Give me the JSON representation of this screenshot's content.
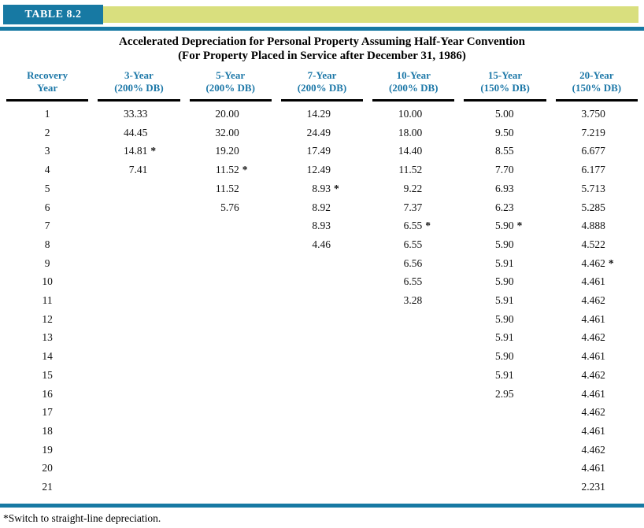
{
  "badge": "TABLE 8.2",
  "title": {
    "line1": "Accelerated Depreciation for Personal Property Assuming Half-Year Convention",
    "line2": "(For Property Placed in Service after December 31, 1986)"
  },
  "table": {
    "columns": [
      {
        "line1": "Recovery",
        "line2": "Year"
      },
      {
        "line1": "3-Year",
        "line2": "(200% DB)"
      },
      {
        "line1": "5-Year",
        "line2": "(200% DB)"
      },
      {
        "line1": "7-Year",
        "line2": "(200% DB)"
      },
      {
        "line1": "10-Year",
        "line2": "(200% DB)"
      },
      {
        "line1": "15-Year",
        "line2": "(150% DB)"
      },
      {
        "line1": "20-Year",
        "line2": "(150% DB)"
      }
    ],
    "rows": [
      {
        "year": "1",
        "values": [
          "33.33",
          "20.00",
          "14.29",
          "10.00",
          "5.00",
          "3.750"
        ]
      },
      {
        "year": "2",
        "values": [
          "44.45",
          "32.00",
          "24.49",
          "18.00",
          "9.50",
          "7.219"
        ]
      },
      {
        "year": "3",
        "values": [
          "14.81 *",
          "19.20",
          "17.49",
          "14.40",
          "8.55",
          "6.677"
        ]
      },
      {
        "year": "4",
        "values": [
          "7.41",
          "11.52 *",
          "12.49",
          "11.52",
          "7.70",
          "6.177"
        ]
      },
      {
        "year": "5",
        "values": [
          "",
          "11.52",
          "8.93 *",
          "9.22",
          "6.93",
          "5.713"
        ]
      },
      {
        "year": "6",
        "values": [
          "",
          "5.76",
          "8.92",
          "7.37",
          "6.23",
          "5.285"
        ]
      },
      {
        "year": "7",
        "values": [
          "",
          "",
          "8.93",
          "6.55 *",
          "5.90 *",
          "4.888"
        ]
      },
      {
        "year": "8",
        "values": [
          "",
          "",
          "4.46",
          "6.55",
          "5.90",
          "4.522"
        ]
      },
      {
        "year": "9",
        "values": [
          "",
          "",
          "",
          "6.56",
          "5.91",
          "4.462 *"
        ]
      },
      {
        "year": "10",
        "values": [
          "",
          "",
          "",
          "6.55",
          "5.90",
          "4.461"
        ]
      },
      {
        "year": "11",
        "values": [
          "",
          "",
          "",
          "3.28",
          "5.91",
          "4.462"
        ]
      },
      {
        "year": "12",
        "values": [
          "",
          "",
          "",
          "",
          "5.90",
          "4.461"
        ]
      },
      {
        "year": "13",
        "values": [
          "",
          "",
          "",
          "",
          "5.91",
          "4.462"
        ]
      },
      {
        "year": "14",
        "values": [
          "",
          "",
          "",
          "",
          "5.90",
          "4.461"
        ]
      },
      {
        "year": "15",
        "values": [
          "",
          "",
          "",
          "",
          "5.91",
          "4.462"
        ]
      },
      {
        "year": "16",
        "values": [
          "",
          "",
          "",
          "",
          "2.95",
          "4.461"
        ]
      },
      {
        "year": "17",
        "values": [
          "",
          "",
          "",
          "",
          "",
          "4.462"
        ]
      },
      {
        "year": "18",
        "values": [
          "",
          "",
          "",
          "",
          "",
          "4.461"
        ]
      },
      {
        "year": "19",
        "values": [
          "",
          "",
          "",
          "",
          "",
          "4.462"
        ]
      },
      {
        "year": "20",
        "values": [
          "",
          "",
          "",
          "",
          "",
          "4.461"
        ]
      },
      {
        "year": "21",
        "values": [
          "",
          "",
          "",
          "",
          "",
          "2.231"
        ]
      }
    ]
  },
  "footnote": "*Switch to straight-line depreciation.",
  "colors": {
    "teal": "#1779a3",
    "lime_band": "#d9df7e",
    "header_text": "#1d78a8",
    "body_text": "#111111",
    "badge_text": "#ffffff"
  }
}
